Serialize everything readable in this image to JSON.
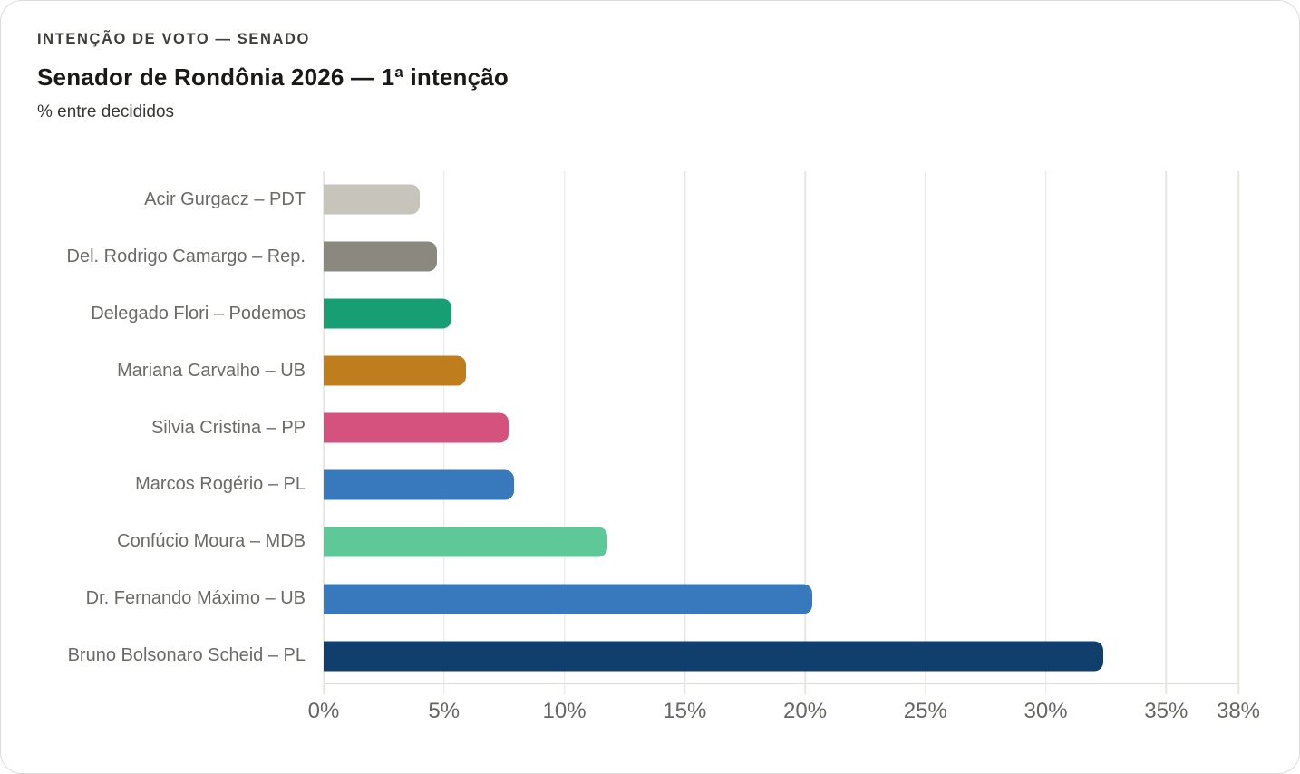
{
  "header": {
    "eyebrow": "INTENÇÃO DE VOTO — SENADO",
    "title": "Senador de Rondônia 2026 — 1ª intenção",
    "subtitle": "% entre decididos"
  },
  "chart_data": {
    "type": "bar",
    "orientation": "horizontal",
    "title": "Senador de Rondônia 2026 — 1ª intenção",
    "subtitle": "% entre decididos",
    "xlabel": "",
    "ylabel": "",
    "xlim": [
      0,
      38
    ],
    "grid": true,
    "legend": "none",
    "unit": "%",
    "categories": [
      "Acir Gurgacz – PDT",
      "Del. Rodrigo Camargo – Rep.",
      "Delegado Flori – Podemos",
      "Mariana Carvalho – UB",
      "Silvia Cristina – PP",
      "Marcos Rogério – PL",
      "Confúcio Moura – MDB",
      "Dr. Fernando Máximo – UB",
      "Bruno Bolsonaro Scheid – PL"
    ],
    "values": [
      4.0,
      4.7,
      5.3,
      5.9,
      7.7,
      7.9,
      11.8,
      20.3,
      32.4
    ],
    "bar_colors": [
      "#c6c4bb",
      "#8b897f",
      "#179e73",
      "#c07d1d",
      "#d5527e",
      "#3878bc",
      "#5fc899",
      "#3878bc",
      "#113f6d"
    ],
    "x_ticks": [
      0,
      5,
      10,
      15,
      20,
      25,
      30,
      35,
      38
    ],
    "x_tick_labels": [
      "0%",
      "5%",
      "10%",
      "15%",
      "20%",
      "25%",
      "30%",
      "35%",
      "38%"
    ]
  },
  "colors": {
    "card_background": "#ffffff",
    "card_border": "#dcdcda",
    "gridline": "#e7e6e2",
    "axis_line": "#deddd9",
    "label_text": "#6b6a66",
    "tick_text": "#686663",
    "title_text": "#1a1916"
  }
}
